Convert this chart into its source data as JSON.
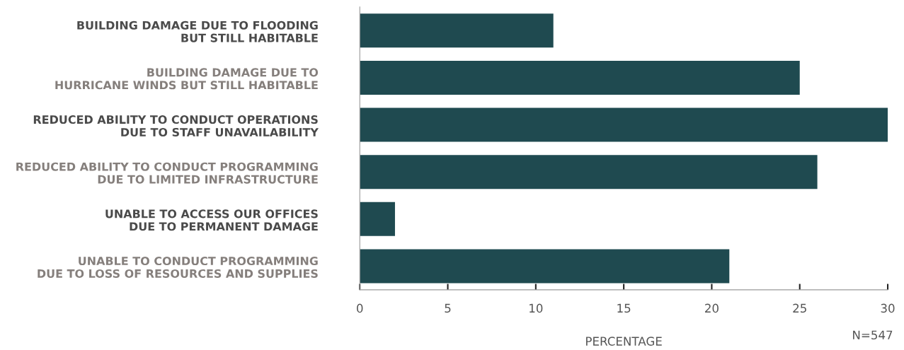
{
  "chart_data": {
    "type": "bar",
    "orientation": "horizontal",
    "categories": [
      "BUILDING DAMAGE DUE TO FLOODING\nBUT STILL HABITABLE",
      "BUILDING DAMAGE DUE TO\nHURRICANE WINDS BUT STILL HABITABLE",
      "REDUCED ABILITY TO CONDUCT OPERATIONS\nDUE TO STAFF UNAVAILABILITY",
      "REDUCED ABILITY TO CONDUCT PROGRAMMING\nDUE TO LIMITED INFRASTRUCTURE",
      "UNABLE TO ACCESS OUR OFFICES\nDUE TO PERMANENT DAMAGE",
      "UNABLE TO CONDUCT PROGRAMMING\nDUE TO LOSS OF RESOURCES AND SUPPLIES"
    ],
    "values": [
      11,
      25,
      30,
      26,
      2,
      21
    ],
    "color": "#1f4a50",
    "xlim": [
      0,
      30
    ],
    "xticks": [
      0,
      5,
      10,
      15,
      20,
      25,
      30
    ],
    "xlabel": "PERCENTAGE",
    "annotations": [
      "N=547"
    ],
    "grid": false,
    "legend": false
  }
}
